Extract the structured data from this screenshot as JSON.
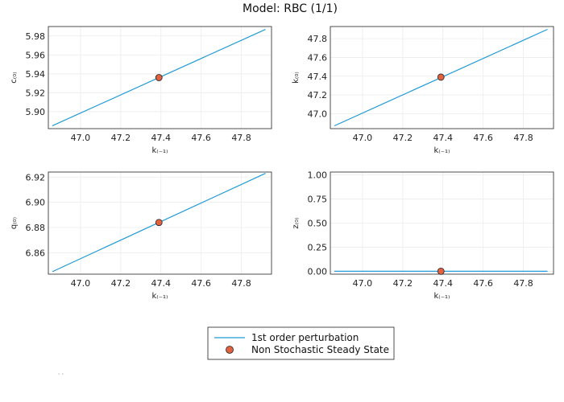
{
  "title": "Model: RBC  (1/1)",
  "colors": {
    "line": "#1f9ad6",
    "point": "#e2623f",
    "grid": "#ececec"
  },
  "legend": {
    "placement": "bottom-center",
    "entries": [
      "1st order perturbation",
      "Non Stochastic Steady State"
    ]
  },
  "footnote": "' '",
  "chart_data": [
    {
      "type": "line",
      "xlabel": "k₍₋₁₎",
      "ylabel": "c₍₀₎",
      "xlim": [
        46.84,
        47.95
      ],
      "ylim": [
        5.882,
        5.99
      ],
      "xticks": [
        "47.0",
        "47.2",
        "47.4",
        "47.6",
        "47.8"
      ],
      "yticks": [
        "5.90",
        "5.92",
        "5.94",
        "5.96",
        "5.98"
      ],
      "series": [
        {
          "x": [
            46.86,
            47.92
          ],
          "y": [
            5.885,
            5.987
          ]
        }
      ],
      "steady_state": {
        "x": 47.39,
        "y": 5.936
      }
    },
    {
      "type": "line",
      "xlabel": "k₍₋₁₎",
      "ylabel": "k₍₀₎",
      "xlim": [
        46.84,
        47.95
      ],
      "ylim": [
        46.84,
        47.93
      ],
      "xticks": [
        "47.0",
        "47.2",
        "47.4",
        "47.6",
        "47.8"
      ],
      "yticks": [
        "47.0",
        "47.2",
        "47.4",
        "47.6",
        "47.8"
      ],
      "series": [
        {
          "x": [
            46.86,
            47.92
          ],
          "y": [
            46.87,
            47.9
          ]
        }
      ],
      "steady_state": {
        "x": 47.39,
        "y": 47.39
      }
    },
    {
      "type": "line",
      "xlabel": "k₍₋₁₎",
      "ylabel": "q₍₀₎",
      "xlim": [
        46.84,
        47.95
      ],
      "ylim": [
        6.843,
        6.924
      ],
      "xticks": [
        "47.0",
        "47.2",
        "47.4",
        "47.6",
        "47.8"
      ],
      "yticks": [
        "6.86",
        "6.88",
        "6.90",
        "6.92"
      ],
      "series": [
        {
          "x": [
            46.86,
            47.92
          ],
          "y": [
            6.845,
            6.923
          ]
        }
      ],
      "steady_state": {
        "x": 47.39,
        "y": 6.884
      }
    },
    {
      "type": "line",
      "xlabel": "k₍₋₁₎",
      "ylabel": "z₍₀₎",
      "xlim": [
        46.84,
        47.95
      ],
      "ylim": [
        -0.03,
        1.03
      ],
      "xticks": [
        "47.0",
        "47.2",
        "47.4",
        "47.6",
        "47.8"
      ],
      "yticks": [
        "0.00",
        "0.25",
        "0.50",
        "0.75",
        "1.00"
      ],
      "series": [
        {
          "x": [
            46.86,
            47.92
          ],
          "y": [
            0.0,
            0.0
          ]
        }
      ],
      "steady_state": {
        "x": 47.39,
        "y": 0.0
      }
    }
  ]
}
